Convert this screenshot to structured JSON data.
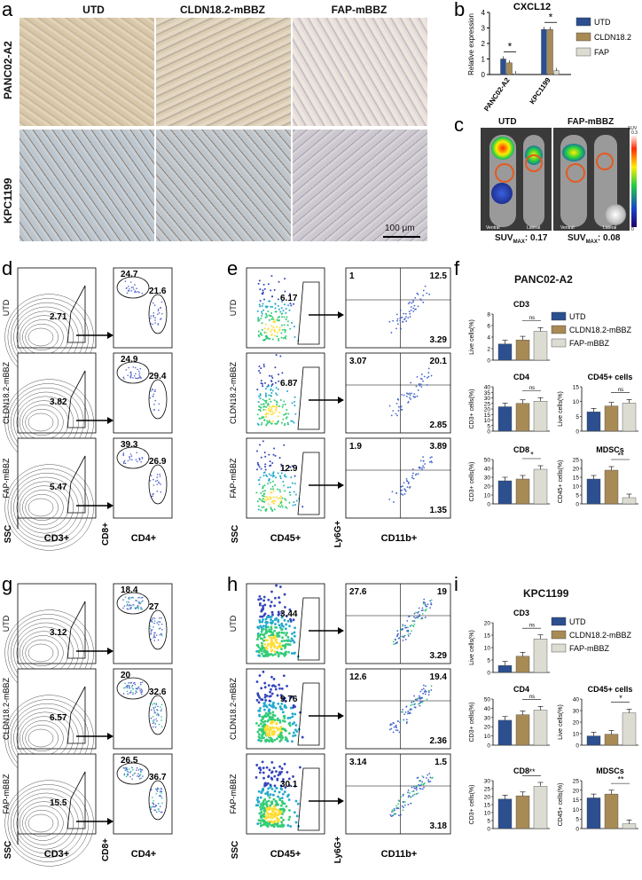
{
  "panels": {
    "a": {
      "label": "a",
      "columns": [
        "UTD",
        "CLDN18.2-mBBZ",
        "FAP-mBBZ"
      ],
      "rows": [
        "PANC02-A2",
        "KPC1199"
      ],
      "scalebar": "100 μm"
    },
    "b": {
      "label": "b"
    },
    "c": {
      "label": "c",
      "titles": [
        "UTD",
        "FAP-mBBZ"
      ],
      "suv_scale": "SUV",
      "suv_max_tick": "0.3",
      "suv_min_tick": "0",
      "views": [
        "Ventral",
        "Lateral"
      ],
      "suv_texts": [
        "SUV",
        "MAX",
        ": 0.17",
        "SUV",
        "MAX",
        ": 0.08"
      ]
    },
    "d": {
      "label": "d",
      "rows": [
        "UTD",
        "CLDN18.2-mBBZ",
        "FAP-mBBZ"
      ],
      "gate_values": [
        "2.71",
        "3.82",
        "5.47"
      ],
      "cd8_values": [
        "24.7",
        "24.9",
        "39.3"
      ],
      "cd4_values": [
        "21.6",
        "29.4",
        "26.9"
      ],
      "axes": [
        "SSC",
        "CD3+",
        "CD8+",
        "CD4+"
      ]
    },
    "e": {
      "label": "e",
      "rows": [
        "UTD",
        "CLDN18.2-mBBZ",
        "FAP-mBBZ"
      ],
      "gate_values": [
        "6.17",
        "6.87",
        "12.9"
      ],
      "q_ul": [
        "1",
        "3.07",
        "1.9"
      ],
      "q_ur": [
        "12.5",
        "20.1",
        "3.89"
      ],
      "q_lr": [
        "3.29",
        "2.85",
        "1.35"
      ],
      "axes": [
        "SSC",
        "CD45+",
        "Ly6G+",
        "CD11b+"
      ]
    },
    "f": {
      "label": "f",
      "title": "PANC02-A2"
    },
    "g": {
      "label": "g",
      "rows": [
        "UTD",
        "CLDN18.2-mBBZ",
        "FAP-mBBZ"
      ],
      "gate_values": [
        "3.12",
        "6.57",
        "15.5"
      ],
      "cd8_values": [
        "18.4",
        "20",
        "26.5"
      ],
      "cd4_values": [
        "27",
        "32.6",
        "36.7"
      ],
      "axes": [
        "SSC",
        "CD3+",
        "CD8+",
        "CD4+"
      ]
    },
    "h": {
      "label": "h",
      "rows": [
        "UTD",
        "CLDN18.2-mBBZ",
        "FAP-mBBZ"
      ],
      "gate_values": [
        "3.44",
        "9.76",
        "30.1"
      ],
      "q_ul": [
        "27.6",
        "12.6",
        "3.14"
      ],
      "q_ur": [
        "19",
        "19.4",
        "1.5"
      ],
      "q_lr": [
        "3.29",
        "2.36",
        "3.18"
      ],
      "axes": [
        "SSC",
        "CD45+",
        "Ly6G+",
        "CD11b+"
      ]
    },
    "i": {
      "label": "i",
      "title": "KPC1199"
    }
  },
  "colors": {
    "utd": "#2b4f8f",
    "cldn": "#a88a55",
    "fap": "#dcdcd2"
  },
  "chart_data": [
    {
      "id": "b",
      "type": "bar",
      "title": "CXCL12",
      "ylabel": "Relative expression",
      "categories": [
        "PANC02-A2",
        "KPC1199"
      ],
      "ylim": [
        0,
        4
      ],
      "yticks": [
        0,
        1,
        2,
        3,
        4
      ],
      "series": [
        {
          "name": "UTD",
          "values": [
            1.0,
            2.9
          ]
        },
        {
          "name": "CLDN18.2",
          "values": [
            0.75,
            2.9
          ]
        },
        {
          "name": "FAP",
          "values": [
            0.05,
            0.25
          ]
        }
      ],
      "legend": "right",
      "sig": [
        "*",
        "*"
      ]
    },
    {
      "id": "f-cd3",
      "type": "bar",
      "title": "CD3",
      "ylabel": "Live cells(%)",
      "ylim": [
        0,
        8
      ],
      "yticks": [
        0,
        2,
        4,
        6,
        8
      ],
      "values": [
        2.8,
        3.5,
        5.0
      ],
      "sig": "ns"
    },
    {
      "id": "f-cd4",
      "type": "bar",
      "title": "CD4",
      "ylabel": "CD3+ cells(%)",
      "ylim": [
        0,
        40
      ],
      "yticks": [
        0,
        5,
        10,
        15,
        20,
        25,
        30,
        35,
        40
      ],
      "values": [
        22,
        25,
        27
      ],
      "sig": "ns"
    },
    {
      "id": "f-cd45",
      "type": "bar",
      "title": "CD45+ cells",
      "ylabel": "Live cells(%)",
      "ylim": [
        0,
        15
      ],
      "yticks": [
        0,
        5,
        10,
        15
      ],
      "values": [
        6.5,
        8.5,
        9.5
      ],
      "sig": "ns"
    },
    {
      "id": "f-cd8",
      "type": "bar",
      "title": "CD8",
      "ylabel": "CD3+ cells(%)",
      "ylim": [
        0,
        50
      ],
      "yticks": [
        0,
        10,
        20,
        30,
        40,
        50
      ],
      "values": [
        26,
        28,
        39
      ],
      "sig": "*"
    },
    {
      "id": "f-mdsc",
      "type": "bar",
      "title": "MDSCs",
      "ylabel": "CD45+ cells(%)",
      "ylim": [
        0,
        25
      ],
      "yticks": [
        0,
        5,
        10,
        15,
        20,
        25
      ],
      "values": [
        14,
        19,
        3.5
      ],
      "sig": "**"
    },
    {
      "id": "i-cd3",
      "type": "bar",
      "title": "CD3",
      "ylabel": "Live cells(%)",
      "ylim": [
        0,
        20
      ],
      "yticks": [
        0,
        5,
        10,
        15,
        20
      ],
      "values": [
        2.8,
        6.5,
        13.5
      ],
      "sig": "ns"
    },
    {
      "id": "i-cd4",
      "type": "bar",
      "title": "CD4",
      "ylabel": "CD3+ cells(%)",
      "ylim": [
        0,
        50
      ],
      "yticks": [
        0,
        10,
        20,
        30,
        40,
        50
      ],
      "values": [
        27,
        33,
        38
      ],
      "sig": "ns"
    },
    {
      "id": "i-cd45",
      "type": "bar",
      "title": "CD45+ cells",
      "ylabel": "Live cells(%)",
      "ylim": [
        0,
        40
      ],
      "yticks": [
        0,
        10,
        20,
        30,
        40
      ],
      "values": [
        8,
        9.5,
        28
      ],
      "sig": "*"
    },
    {
      "id": "i-cd8",
      "type": "bar",
      "title": "CD8",
      "ylabel": "CD3+ cells(%)",
      "ylim": [
        0,
        30
      ],
      "yticks": [
        0,
        5,
        10,
        15,
        20,
        25,
        30
      ],
      "values": [
        18.5,
        20.5,
        26.5
      ],
      "sig": "**"
    },
    {
      "id": "i-mdsc",
      "type": "bar",
      "title": "MDSCs",
      "ylabel": "CD45+ cells(%)",
      "ylim": [
        0,
        25
      ],
      "yticks": [
        0,
        5,
        10,
        15,
        20,
        25
      ],
      "values": [
        16,
        18,
        2.5
      ],
      "sig": "**"
    }
  ],
  "legend_fi": [
    "UTD",
    "CLDN18.2-mBBZ",
    "FAP-mBBZ"
  ]
}
